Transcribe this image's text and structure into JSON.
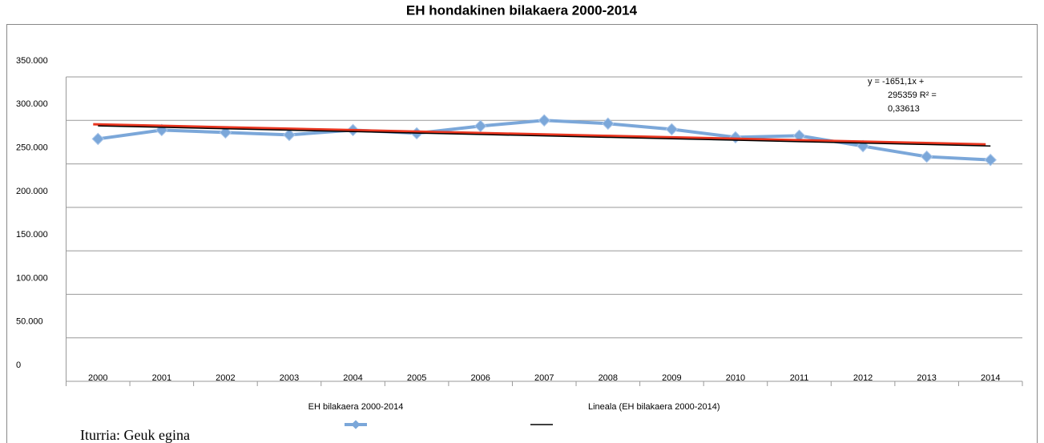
{
  "chart_data": {
    "type": "line",
    "title": "EH hondakinen bilakaera 2000-2014",
    "categories": [
      "2000",
      "2001",
      "2002",
      "2003",
      "2004",
      "2005",
      "2006",
      "2007",
      "2008",
      "2009",
      "2010",
      "2011",
      "2012",
      "2013",
      "2014"
    ],
    "series": [
      {
        "name": "EH bilakaera  2000-2014",
        "color": "#7ba7d9",
        "values": [
          278700,
          288900,
          286100,
          283300,
          288900,
          285200,
          293500,
          300000,
          296300,
          289800,
          280600,
          282400,
          270400,
          258300,
          254600
        ]
      },
      {
        "name": "Lineala (EH bilakaera 2000-2014)",
        "color": "#000000",
        "values": [
          293708,
          292057,
          290406,
          288755,
          287104,
          285453,
          283802,
          282150,
          280499,
          278848,
          277197,
          275546,
          273895,
          272244,
          270593
        ]
      }
    ],
    "ylim": [
      0,
      350000
    ],
    "yticks": [
      {
        "value": 0,
        "label": "0"
      },
      {
        "value": 50000,
        "label": "50.000"
      },
      {
        "value": 100000,
        "label": "100.000"
      },
      {
        "value": 150000,
        "label": "150.000"
      },
      {
        "value": 200000,
        "label": "200.000"
      },
      {
        "value": 250000,
        "label": "250.000"
      },
      {
        "value": 300000,
        "label": "300.000"
      },
      {
        "value": 350000,
        "label": "350.000"
      }
    ],
    "grid": true,
    "annotation_lines": [
      "y = -1651,1x +",
      "295359 R² =",
      "0,33613"
    ],
    "source": "Iturria: Geuk egina"
  }
}
